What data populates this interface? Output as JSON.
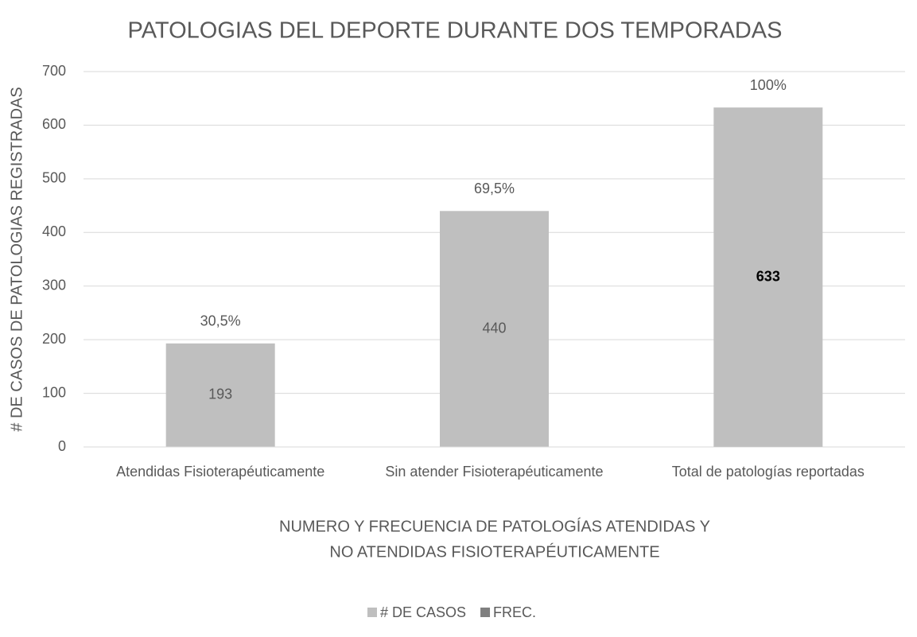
{
  "chart_data": {
    "type": "bar",
    "title": "PATOLOGIAS DEL DEPORTE DURANTE DOS TEMPORADAS",
    "ylabel": "# DE CASOS DE PATOLOGIAS REGISTRADAS",
    "xlabel": [
      "NUMERO Y FRECUENCIA DE PATOLOGÍAS ATENDIDAS Y",
      "NO ATENDIDAS FISIOTERAPÉUTICAMENTE"
    ],
    "categories": [
      "Atendidas Fisioterapéuticamente",
      "Sin atender Fisioterapéuticamente",
      "Total de patologías reportadas"
    ],
    "series": [
      {
        "name": "# DE CASOS",
        "color": "#bfbfbf",
        "values": [
          193,
          440,
          633
        ]
      },
      {
        "name": "FREC.",
        "color": "#8c8c8c",
        "values": [
          0.305,
          0.695,
          1
        ],
        "value_labels": [
          "30,5%",
          "69,5%",
          "100%"
        ]
      }
    ],
    "ylim": [
      0,
      700
    ],
    "yticks": [
      0,
      100,
      200,
      300,
      400,
      500,
      600,
      700
    ],
    "grid": true,
    "legend": "bottom"
  }
}
